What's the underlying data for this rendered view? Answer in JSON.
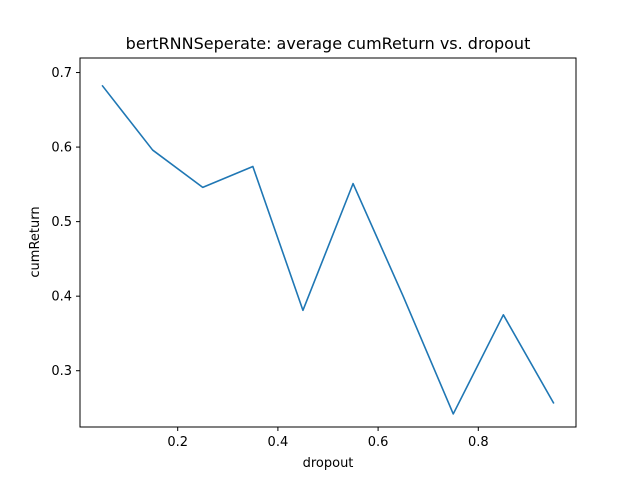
{
  "chart_data": {
    "type": "line",
    "title": "bertRNNSeperate: average cumReturn vs. dropout",
    "xlabel": "dropout",
    "ylabel": "cumReturn",
    "xlim": [
      0.005,
      0.995
    ],
    "ylim": [
      0.2245,
      0.7195
    ],
    "x_ticks": [
      0.2,
      0.4,
      0.6,
      0.8
    ],
    "x_tick_labels": [
      "0.2",
      "0.4",
      "0.6",
      "0.8"
    ],
    "y_ticks": [
      0.3,
      0.4,
      0.5,
      0.6,
      0.7
    ],
    "y_tick_labels": [
      "0.3",
      "0.4",
      "0.5",
      "0.6",
      "0.7"
    ],
    "grid": false,
    "series": [
      {
        "color": "#1f77b4",
        "x": [
          0.05,
          0.15,
          0.25,
          0.35,
          0.45,
          0.55,
          0.65,
          0.75,
          0.85,
          0.95
        ],
        "y": [
          0.682,
          0.596,
          0.546,
          0.574,
          0.381,
          0.551,
          0.4,
          0.242,
          0.375,
          0.257
        ]
      }
    ]
  }
}
